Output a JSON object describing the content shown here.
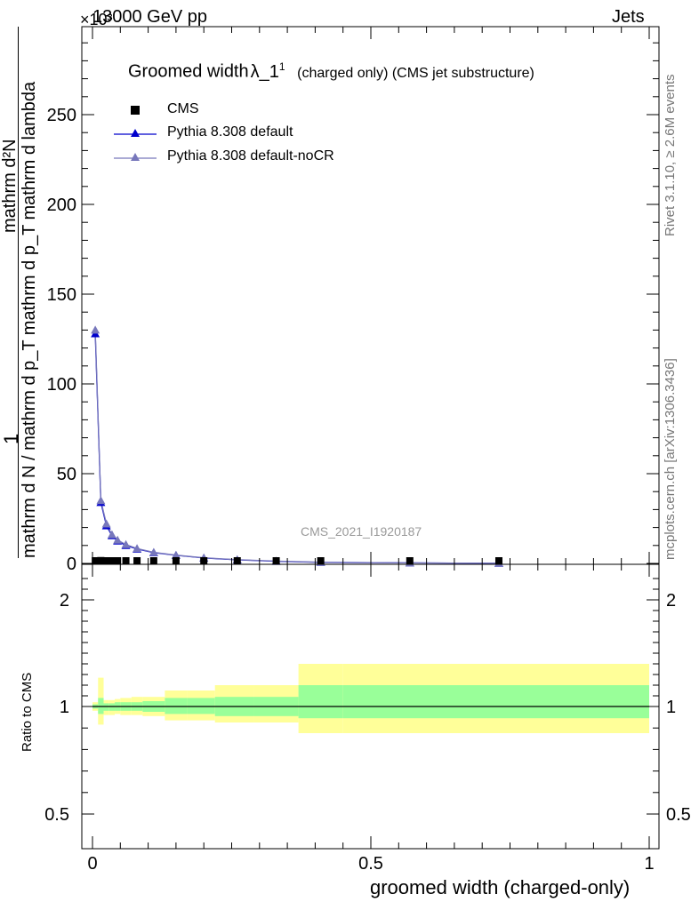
{
  "header": {
    "energy": "13000 GeV pp",
    "exponent": "×10³",
    "category": "Jets"
  },
  "side_notes": {
    "rivet": "Rivet 3.1.10, ≥ 2.6M events",
    "mcplots": "mcplots.cern.ch [arXiv:1306.3436]"
  },
  "plot_title": {
    "main": "Groomed width",
    "symbol": "λ_1",
    "sup": "1",
    "detail": "(charged only) (CMS jet substructure)"
  },
  "analysis_id": "CMS_2021_I1920187",
  "y_axis_label": {
    "numerator": "1",
    "denominator": "mathrm d N / mathrm d p_T mathrm d p_T mathrm d lambda",
    "deriv_num": "mathrm d²N"
  },
  "ratio_ylabel": "Ratio to CMS",
  "x_axis_label": "groomed width (charged-only)",
  "colors": {
    "data": "#000000",
    "default": "#0000cc",
    "nocr": "#7777bb",
    "band_inner": "#99ff99",
    "band_outer": "#ffff99"
  },
  "chart_data": [
    {
      "type": "line",
      "panel": "main",
      "xlim": [
        0,
        1
      ],
      "ylim": [
        0,
        300
      ],
      "y_scale_factor": 1000,
      "y_ticks": [
        "0",
        "50",
        "100",
        "150",
        "200",
        "250"
      ],
      "y_tick_values": [
        0,
        50,
        100,
        150,
        200,
        250
      ],
      "legend_position": "top-left",
      "series": [
        {
          "name": "CMS",
          "marker": "square",
          "x": [
            0.005,
            0.015,
            0.025,
            0.035,
            0.045,
            0.06,
            0.08,
            0.11,
            0.15,
            0.2,
            0.26,
            0.33,
            0.41,
            0.57,
            0.73
          ],
          "y": [
            1.4,
            1.6,
            1.2,
            1.0,
            0.8,
            0.7,
            0.6,
            0.5,
            0.4,
            0.3,
            0.2,
            0.15,
            0.6,
            0.1,
            0.5
          ]
        },
        {
          "name": "Pythia 8.308 default",
          "marker": "triangle",
          "x": [
            0.005,
            0.015,
            0.025,
            0.035,
            0.045,
            0.06,
            0.08,
            0.11,
            0.15,
            0.2,
            0.26,
            0.33,
            0.41,
            0.57,
            0.73
          ],
          "y": [
            128,
            34,
            21,
            15.5,
            12.5,
            10,
            8,
            6,
            4.5,
            3,
            2,
            1.2,
            0.6,
            0.3,
            0.1
          ]
        },
        {
          "name": "Pythia 8.308 default-noCR",
          "marker": "triangle",
          "x": [
            0.005,
            0.015,
            0.025,
            0.035,
            0.045,
            0.06,
            0.08,
            0.11,
            0.15,
            0.2,
            0.26,
            0.33,
            0.41,
            0.57,
            0.73
          ],
          "y": [
            130,
            35,
            22,
            16,
            13,
            10.5,
            8.3,
            6.2,
            4.6,
            3.1,
            2.1,
            1.3,
            0.65,
            0.3,
            0.1
          ]
        }
      ]
    },
    {
      "type": "area",
      "panel": "ratio",
      "xlim": [
        0,
        1
      ],
      "ylim": [
        0.35,
        2.3
      ],
      "y_ticks": [
        "0.5",
        "1",
        "2"
      ],
      "y_tick_values": [
        0.5,
        1,
        2
      ],
      "x_ticks": [
        "0",
        "0.5",
        "1"
      ],
      "x_tick_values": [
        0,
        0.5,
        1
      ],
      "bins": [
        0,
        0.01,
        0.02,
        0.03,
        0.04,
        0.05,
        0.07,
        0.09,
        0.13,
        0.17,
        0.22,
        0.29,
        0.37,
        0.45,
        1.0
      ],
      "outer_low": [
        0.96,
        0.83,
        0.92,
        0.92,
        0.93,
        0.92,
        0.92,
        0.91,
        0.87,
        0.87,
        0.85,
        0.85,
        0.75,
        0.75
      ],
      "outer_high": [
        1.04,
        1.27,
        1.06,
        1.06,
        1.07,
        1.08,
        1.09,
        1.09,
        1.15,
        1.15,
        1.2,
        1.2,
        1.4,
        1.4
      ],
      "inner_low": [
        0.98,
        0.93,
        0.96,
        0.96,
        0.96,
        0.96,
        0.96,
        0.95,
        0.93,
        0.93,
        0.91,
        0.91,
        0.89,
        0.89
      ],
      "inner_high": [
        1.02,
        1.08,
        1.03,
        1.03,
        1.04,
        1.04,
        1.04,
        1.05,
        1.08,
        1.08,
        1.09,
        1.09,
        1.2,
        1.2
      ],
      "reference_line": 1
    }
  ]
}
